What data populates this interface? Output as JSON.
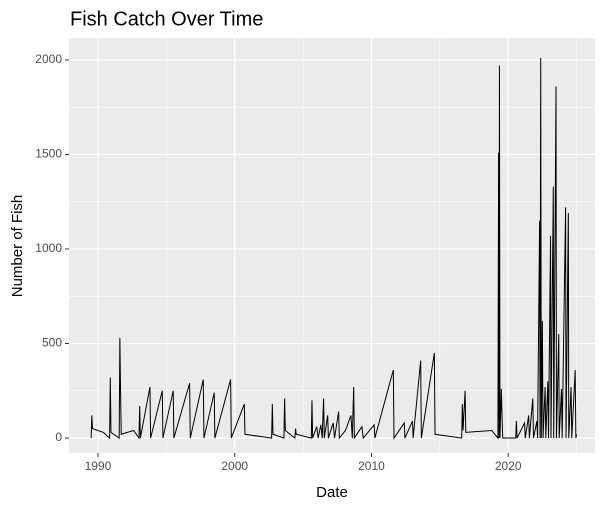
{
  "chart_data": {
    "type": "line",
    "title": "Fish Catch Over Time",
    "x_label": "Date",
    "y_label": "Number of Fish",
    "color": "#000000",
    "grid": true,
    "xlim": [
      1987.88,
      2026.35
    ],
    "ylim": [
      -79,
      2116
    ],
    "xticks": [
      1990,
      2000,
      2010,
      2020
    ],
    "yticks": [
      0,
      500,
      1000,
      1500,
      2000
    ],
    "xminor": [
      1995,
      2005,
      2015,
      2025
    ],
    "yminor": [
      250,
      750,
      1250,
      1750
    ],
    "x": [
      1989.5,
      1989.55,
      1989.6,
      1990.4,
      1990.85,
      1990.9,
      1990.95,
      1991.55,
      1991.6,
      1991.65,
      1991.7,
      1992.6,
      1993.0,
      1993.05,
      1993.1,
      1993.8,
      1993.85,
      1994.7,
      1994.75,
      1995.5,
      1995.55,
      1996.7,
      1996.75,
      1997.7,
      1997.75,
      1998.5,
      1998.55,
      1999.7,
      1999.75,
      2000.7,
      2000.75,
      2002.7,
      2002.75,
      2002.8,
      2003.6,
      2003.65,
      2003.7,
      2004.4,
      2004.45,
      2004.5,
      2005.6,
      2005.65,
      2005.7,
      2006.0,
      2006.1,
      2006.3,
      2006.4,
      2006.5,
      2006.55,
      2006.8,
      2006.85,
      2007.2,
      2007.3,
      2007.6,
      2007.65,
      2008.1,
      2008.5,
      2008.6,
      2008.7,
      2008.75,
      2009.3,
      2009.4,
      2010.2,
      2010.25,
      2011.6,
      2011.65,
      2012.4,
      2012.45,
      2013.0,
      2013.05,
      2013.6,
      2013.65,
      2014.6,
      2014.65,
      2016.6,
      2016.65,
      2016.7,
      2016.85,
      2016.9,
      2018.8,
      2019.25,
      2019.3,
      2019.33,
      2019.36,
      2019.4,
      2019.5,
      2019.55,
      2019.6,
      2020.55,
      2020.6,
      2020.65,
      2021.2,
      2021.25,
      2021.5,
      2021.55,
      2021.8,
      2021.85,
      2022.1,
      2022.15,
      2022.3,
      2022.33,
      2022.38,
      2022.42,
      2022.5,
      2022.55,
      2022.7,
      2022.75,
      2022.9,
      2022.95,
      2023.1,
      2023.13,
      2023.3,
      2023.33,
      2023.5,
      2023.53,
      2023.7,
      2023.73,
      2023.9,
      2023.95,
      2024.2,
      2024.23,
      2024.4,
      2024.43,
      2024.6,
      2024.65,
      2024.9,
      2024.95,
      2025.0
    ],
    "values": [
      0,
      120,
      50,
      30,
      0,
      320,
      30,
      0,
      530,
      250,
      20,
      40,
      0,
      170,
      0,
      270,
      0,
      250,
      0,
      250,
      0,
      290,
      0,
      310,
      0,
      240,
      0,
      310,
      0,
      180,
      20,
      0,
      180,
      20,
      0,
      210,
      40,
      0,
      50,
      20,
      0,
      200,
      0,
      60,
      0,
      70,
      0,
      210,
      0,
      120,
      0,
      80,
      0,
      140,
      0,
      40,
      120,
      0,
      270,
      0,
      60,
      0,
      70,
      0,
      360,
      0,
      80,
      0,
      90,
      0,
      410,
      0,
      450,
      20,
      0,
      180,
      40,
      250,
      30,
      40,
      0,
      1510,
      0,
      1970,
      0,
      260,
      120,
      0,
      0,
      90,
      0,
      80,
      0,
      120,
      0,
      210,
      0,
      90,
      0,
      1150,
      0,
      2010,
      0,
      620,
      0,
      270,
      0,
      300,
      0,
      1070,
      0,
      1330,
      0,
      1860,
      0,
      550,
      0,
      260,
      0,
      1220,
      0,
      1190,
      0,
      270,
      0,
      360,
      0,
      20
    ]
  }
}
